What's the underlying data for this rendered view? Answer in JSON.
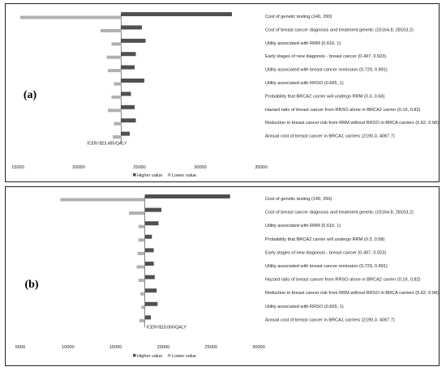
{
  "chart_data": [
    {
      "type": "tornado",
      "panel_label": "(a)",
      "baseline": 23485,
      "annotation": "ICER=$23,485/QALY",
      "xlim": [
        15000,
        35000
      ],
      "xticks": [
        15000,
        20000,
        25000,
        30000,
        35000
      ],
      "legend": [
        "Higher value",
        "Lower value"
      ],
      "legend_position": "bottom",
      "colors": {
        "higher": "#505050",
        "lower": "#b0b0b0"
      },
      "categories": [
        "Cost of genetic testing (140, 260)",
        "Cost of breast cancer diagnosis and treatment genetic (15164.8, 28163.2)",
        "Utility associated with RRM (0.616, 1)",
        "Early stages of new diagnosis - breast cancer (0.497, 0.923)",
        "Utility associated with breast cancer remission (0.729, 0.891)",
        "Utility associated with RRSO (0.665, 1)",
        "Probability that BRCA2 carrier will undergo RRM (0.3, 0.58)",
        "Hazard ratio of breast cancer from RRSO alone in BRCA2 carrier (0.16, 0.82)",
        "Reduction in breast cancer risk from RRM without RRSO in BRCA carriers (0.62, 0.98)",
        "Annual cost of breast cancer in BRCA1 carriers (2190.3, 4067.7)"
      ],
      "series": [
        {
          "name": "Higher value",
          "values": [
            32600,
            25200,
            25500,
            24700,
            24600,
            25400,
            24300,
            24600,
            24700,
            24200
          ]
        },
        {
          "name": "Lower value",
          "values": [
            15200,
            21800,
            22700,
            22300,
            22400,
            22900,
            22700,
            22400,
            22900,
            22800
          ]
        }
      ]
    },
    {
      "type": "tornado",
      "panel_label": "(b)",
      "baseline": 18066,
      "annotation": "ICER=$18,066/QALY",
      "xlim": [
        5000,
        30000
      ],
      "xticks": [
        5000,
        10000,
        15000,
        20000,
        25000,
        30000
      ],
      "legend": [
        "Higher value",
        "Lower value"
      ],
      "legend_position": "bottom",
      "colors": {
        "higher": "#505050",
        "lower": "#b0b0b0"
      },
      "categories": [
        "Cost of genetic testing (140, 260)",
        "Cost of breast cancer diagnosis and treatment genetic (15164.8, 28163.2)",
        "Utility associated with RRM (0.616, 1)",
        "Probability that BRCA2 carrier will undergo RRM (0.3, 0.58)",
        "Early stages of new diagnosis - breast cancer (0.497, 0.923)",
        "Utility associated with breast cancer remission (0.729, 0.891)",
        "Hazard ratio of breast cancer from RRSO alone in BRCA2 carrier (0.16, 0.82)",
        "Reduction in breast cancer risk from RRM without RRSO in BRCA carriers (0.62, 0.98)",
        "Utility associated with RRSO (0.665, 1)",
        "Annual cost of breast cancer in BRCA1 carriers (2190.3, 4067.7)"
      ],
      "series": [
        {
          "name": "Higher value",
          "values": [
            27000,
            19800,
            19500,
            18800,
            19000,
            19000,
            19100,
            19300,
            19400,
            18700
          ]
        },
        {
          "name": "Lower value",
          "values": [
            9200,
            16400,
            17400,
            17400,
            17300,
            17200,
            17400,
            17600,
            17700,
            17500
          ]
        }
      ]
    }
  ]
}
